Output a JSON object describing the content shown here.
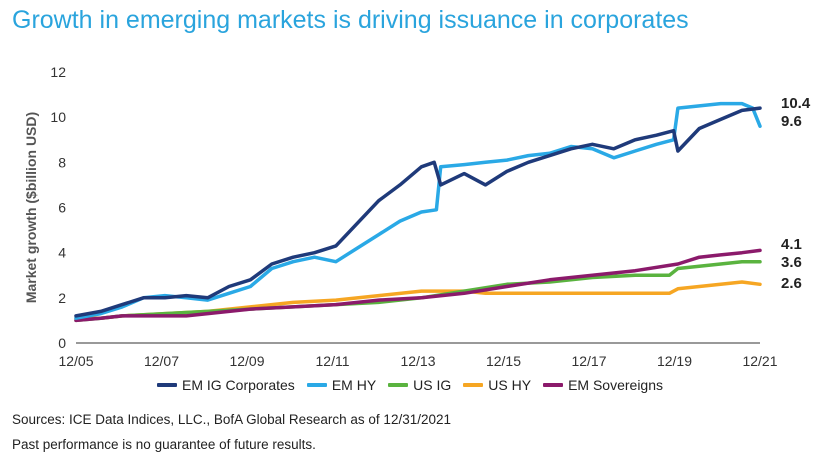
{
  "title": "Growth in emerging markets is driving issuance in corporates",
  "source": "Sources: ICE Data Indices, LLC., BofA Global Research as of 12/31/2021",
  "disclaimer": "Past performance is no guarantee of future results.",
  "chart_data": {
    "type": "line",
    "title": "Growth in emerging markets is driving issuance in corporates",
    "ylabel": "Market growth ($billion USD)",
    "xlabel": "",
    "ylim": [
      0,
      12
    ],
    "yticks": [
      "0",
      "2",
      "4",
      "6",
      "8",
      "10",
      "12"
    ],
    "xlim": [
      2005.92,
      2021.92
    ],
    "xticks": [
      {
        "x": 2005.92,
        "label": "12/05"
      },
      {
        "x": 2007.92,
        "label": "12/07"
      },
      {
        "x": 2009.92,
        "label": "12/09"
      },
      {
        "x": 2011.92,
        "label": "12/11"
      },
      {
        "x": 2013.92,
        "label": "12/13"
      },
      {
        "x": 2015.92,
        "label": "12/15"
      },
      {
        "x": 2017.92,
        "label": "12/17"
      },
      {
        "x": 2019.92,
        "label": "12/19"
      },
      {
        "x": 2021.92,
        "label": "12/21"
      }
    ],
    "grid": false,
    "legend_position": "bottom",
    "series": [
      {
        "name": "EM IG Corporates",
        "color": "#1f3a7a",
        "end_label": "10.4",
        "points": [
          [
            2005.92,
            1.2
          ],
          [
            2006.5,
            1.4
          ],
          [
            2007.0,
            1.7
          ],
          [
            2007.5,
            2.0
          ],
          [
            2008.0,
            2.0
          ],
          [
            2008.5,
            2.1
          ],
          [
            2009.0,
            2.0
          ],
          [
            2009.5,
            2.5
          ],
          [
            2010.0,
            2.8
          ],
          [
            2010.5,
            3.5
          ],
          [
            2011.0,
            3.8
          ],
          [
            2011.5,
            4.0
          ],
          [
            2012.0,
            4.3
          ],
          [
            2012.5,
            5.3
          ],
          [
            2013.0,
            6.3
          ],
          [
            2013.5,
            7.0
          ],
          [
            2014.0,
            7.8
          ],
          [
            2014.3,
            8.0
          ],
          [
            2014.45,
            7.0
          ],
          [
            2015.0,
            7.5
          ],
          [
            2015.5,
            7.0
          ],
          [
            2016.0,
            7.6
          ],
          [
            2016.5,
            8.0
          ],
          [
            2017.0,
            8.3
          ],
          [
            2017.5,
            8.6
          ],
          [
            2018.0,
            8.8
          ],
          [
            2018.5,
            8.6
          ],
          [
            2019.0,
            9.0
          ],
          [
            2019.5,
            9.2
          ],
          [
            2019.9,
            9.4
          ],
          [
            2020.0,
            8.5
          ],
          [
            2020.5,
            9.5
          ],
          [
            2021.0,
            9.9
          ],
          [
            2021.5,
            10.3
          ],
          [
            2021.92,
            10.4
          ]
        ]
      },
      {
        "name": "EM HY",
        "color": "#2aa9e6",
        "end_label": "9.6",
        "points": [
          [
            2005.92,
            1.1
          ],
          [
            2006.5,
            1.3
          ],
          [
            2007.0,
            1.6
          ],
          [
            2007.5,
            2.0
          ],
          [
            2008.0,
            2.1
          ],
          [
            2008.5,
            2.0
          ],
          [
            2009.0,
            1.9
          ],
          [
            2009.5,
            2.2
          ],
          [
            2010.0,
            2.5
          ],
          [
            2010.5,
            3.3
          ],
          [
            2011.0,
            3.6
          ],
          [
            2011.5,
            3.8
          ],
          [
            2012.0,
            3.6
          ],
          [
            2012.5,
            4.2
          ],
          [
            2013.0,
            4.8
          ],
          [
            2013.5,
            5.4
          ],
          [
            2014.0,
            5.8
          ],
          [
            2014.35,
            5.9
          ],
          [
            2014.45,
            7.8
          ],
          [
            2015.0,
            7.9
          ],
          [
            2015.5,
            8.0
          ],
          [
            2016.0,
            8.1
          ],
          [
            2016.5,
            8.3
          ],
          [
            2017.0,
            8.4
          ],
          [
            2017.5,
            8.7
          ],
          [
            2018.0,
            8.6
          ],
          [
            2018.5,
            8.2
          ],
          [
            2019.0,
            8.5
          ],
          [
            2019.5,
            8.8
          ],
          [
            2019.9,
            9.0
          ],
          [
            2020.0,
            10.4
          ],
          [
            2020.5,
            10.5
          ],
          [
            2021.0,
            10.6
          ],
          [
            2021.5,
            10.6
          ],
          [
            2021.75,
            10.4
          ],
          [
            2021.92,
            9.6
          ]
        ]
      },
      {
        "name": "US IG",
        "color": "#5ab33f",
        "end_label": "3.6",
        "points": [
          [
            2005.92,
            1.0
          ],
          [
            2006.5,
            1.1
          ],
          [
            2007.0,
            1.2
          ],
          [
            2008.0,
            1.3
          ],
          [
            2009.0,
            1.4
          ],
          [
            2010.0,
            1.5
          ],
          [
            2011.0,
            1.6
          ],
          [
            2012.0,
            1.7
          ],
          [
            2013.0,
            1.8
          ],
          [
            2014.0,
            2.0
          ],
          [
            2015.0,
            2.3
          ],
          [
            2016.0,
            2.6
          ],
          [
            2017.0,
            2.7
          ],
          [
            2018.0,
            2.9
          ],
          [
            2019.0,
            3.0
          ],
          [
            2019.8,
            3.0
          ],
          [
            2020.0,
            3.3
          ],
          [
            2020.5,
            3.4
          ],
          [
            2021.0,
            3.5
          ],
          [
            2021.5,
            3.6
          ],
          [
            2021.92,
            3.6
          ]
        ]
      },
      {
        "name": "US HY",
        "color": "#f6a623",
        "end_label": "2.6",
        "points": [
          [
            2005.92,
            1.1
          ],
          [
            2006.5,
            1.1
          ],
          [
            2007.0,
            1.2
          ],
          [
            2008.0,
            1.3
          ],
          [
            2009.0,
            1.4
          ],
          [
            2010.0,
            1.6
          ],
          [
            2011.0,
            1.8
          ],
          [
            2012.0,
            1.9
          ],
          [
            2013.0,
            2.1
          ],
          [
            2014.0,
            2.3
          ],
          [
            2014.5,
            2.3
          ],
          [
            2015.0,
            2.3
          ],
          [
            2015.5,
            2.2
          ],
          [
            2016.0,
            2.2
          ],
          [
            2017.0,
            2.2
          ],
          [
            2018.0,
            2.2
          ],
          [
            2019.0,
            2.2
          ],
          [
            2019.8,
            2.2
          ],
          [
            2020.0,
            2.4
          ],
          [
            2020.5,
            2.5
          ],
          [
            2021.0,
            2.6
          ],
          [
            2021.5,
            2.7
          ],
          [
            2021.92,
            2.6
          ]
        ]
      },
      {
        "name": "EM Sovereigns",
        "color": "#8b1a6b",
        "end_label": "4.1",
        "points": [
          [
            2005.92,
            1.0
          ],
          [
            2006.5,
            1.1
          ],
          [
            2007.0,
            1.2
          ],
          [
            2008.0,
            1.2
          ],
          [
            2008.5,
            1.2
          ],
          [
            2009.0,
            1.3
          ],
          [
            2010.0,
            1.5
          ],
          [
            2011.0,
            1.6
          ],
          [
            2012.0,
            1.7
          ],
          [
            2013.0,
            1.9
          ],
          [
            2014.0,
            2.0
          ],
          [
            2015.0,
            2.2
          ],
          [
            2016.0,
            2.5
          ],
          [
            2017.0,
            2.8
          ],
          [
            2018.0,
            3.0
          ],
          [
            2019.0,
            3.2
          ],
          [
            2020.0,
            3.5
          ],
          [
            2020.5,
            3.8
          ],
          [
            2021.0,
            3.9
          ],
          [
            2021.5,
            4.0
          ],
          [
            2021.92,
            4.1
          ]
        ]
      }
    ]
  }
}
